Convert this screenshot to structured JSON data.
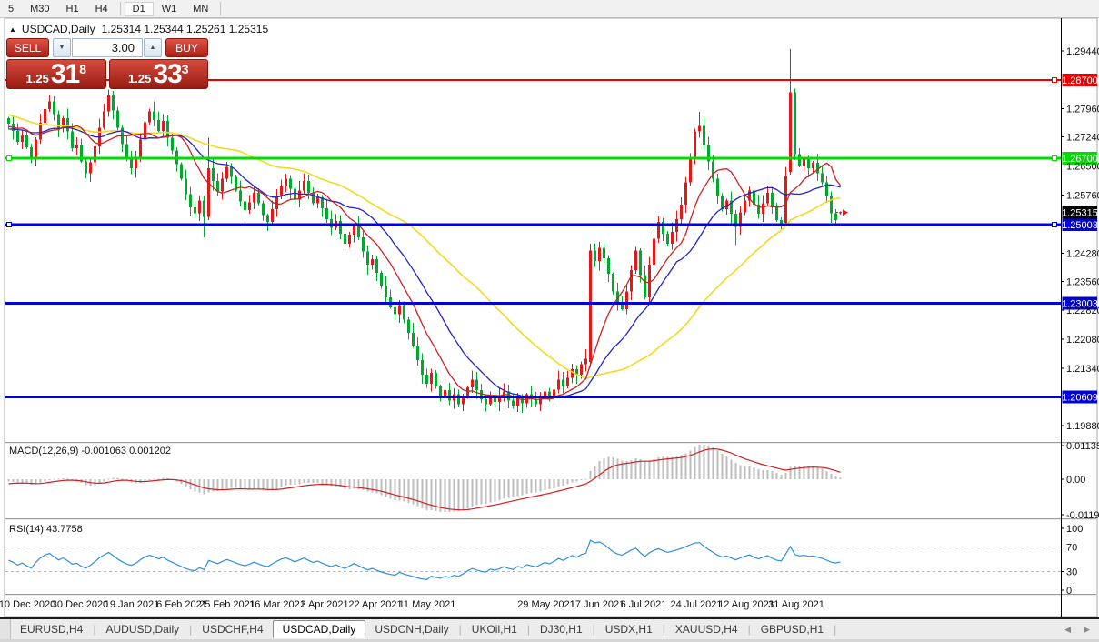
{
  "toolbar": {
    "timeframes": [
      "5",
      "M30",
      "H1",
      "H4",
      "D1",
      "W1",
      "MN"
    ],
    "active_timeframe": "D1"
  },
  "chart_header": {
    "symbol": "USDCAD,Daily",
    "ohlc": "1.25314 1.25344 1.25261 1.25315"
  },
  "trade_panel": {
    "sell_label": "SELL",
    "buy_label": "BUY",
    "volume": "3.00",
    "bid": {
      "prefix": "1.25",
      "big": "31",
      "pip": "8"
    },
    "ask": {
      "prefix": "1.25",
      "big": "33",
      "pip": "3"
    }
  },
  "tabs": {
    "items": [
      "EURUSD,H4",
      "AUDUSD,Daily",
      "USDCHF,H4",
      "USDCAD,Daily",
      "USDCNH,Daily",
      "UKOil,H1",
      "DJ30,H1",
      "USDX,H1",
      "XAUUSD,H4",
      "GBPUSD,H1"
    ],
    "active_index": 3
  },
  "chart_data": {
    "type": "candlestick",
    "title": "USDCAD,Daily",
    "colors": {
      "up": "#e81717",
      "down": "#00a82d",
      "ma_fast": "#cc2222",
      "ma_mid": "#2323cc",
      "ma_slow": "#f2da1f",
      "macd_hist": "#bdbdbd",
      "macd_signal": "#cc2222",
      "rsi": "#2f8fdd",
      "line_red": "#ee0000",
      "line_green": "#00dd00",
      "line_blue": "#0000dd",
      "current_label_bg": "#000000"
    },
    "price_axis_ticks": [
      "1.29440",
      "1.27960",
      "1.27240",
      "1.26500",
      "1.25760",
      "1.24280",
      "1.23560",
      "1.22820",
      "1.22080",
      "1.21340",
      "1.19880"
    ],
    "price_lines": [
      {
        "label": "1.28700",
        "price": 1.287,
        "color": "#ee0000",
        "width": 2,
        "handles": true
      },
      {
        "label": "1.26700",
        "price": 1.267,
        "color": "#00dd00",
        "width": 3,
        "handles": true
      },
      {
        "label": "1.25003",
        "price": 1.25003,
        "color": "#0000dd",
        "width": 3,
        "handles": true
      },
      {
        "label": "1.23003",
        "price": 1.23003,
        "color": "#0000dd",
        "width": 3,
        "handles": false
      },
      {
        "label": "1.20609",
        "price": 1.20609,
        "color": "#0000dd",
        "width": 3,
        "handles": false
      }
    ],
    "current_price_label": "1.25315",
    "current_price": 1.25315,
    "x_axis": {
      "labels": [
        "10 Dec 2020",
        "30 Dec 2020",
        "19 Jan 2021",
        "6 Feb 2021",
        "25 Feb 2021",
        "16 Mar 2021",
        "3 Apr 2021",
        "22 Apr 2021",
        "11 May 2021",
        "29 May 2021",
        "17 Jun 2021",
        "6 Jul 2021",
        "24 Jul 2021",
        "12 Aug 2021",
        "31 Aug 2021"
      ]
    },
    "macd": {
      "label": "MACD(12,26,9)",
      "values_text": "-0.001063 0.001202",
      "scale": [
        "0.01135",
        "0.00",
        "-0.01190"
      ],
      "fast": 12,
      "slow": 26,
      "signal": 9
    },
    "rsi": {
      "label": "RSI(14)",
      "value_text": "43.7758",
      "scale": [
        "100",
        "70",
        "30",
        "0"
      ],
      "period": 14,
      "levels": [
        70,
        30
      ]
    },
    "ma_periods": {
      "fast": 10,
      "mid": 20,
      "slow": 45
    },
    "wick_pips": {
      "base": 0.0004,
      "range": 0.0022
    },
    "pre_closes": [
      1.292,
      1.2905,
      1.2888,
      1.2902,
      1.2878,
      1.286,
      1.2872,
      1.2845,
      1.2828,
      1.2842,
      1.2815,
      1.2798,
      1.2812,
      1.2788,
      1.2772,
      1.279,
      1.2805,
      1.2782,
      1.2765,
      1.2778,
      1.2752,
      1.2768,
      1.2742,
      1.2758,
      1.2775,
      1.2748,
      1.2732,
      1.2755,
      1.2738,
      1.276,
      1.2742,
      1.2725,
      1.2748,
      1.273,
      1.2712,
      1.2735,
      1.2758,
      1.274,
      1.2722,
      1.2745,
      1.2768,
      1.2752,
      1.2735,
      1.2758,
      1.2772
    ],
    "closes": [
      1.2758,
      1.274,
      1.2712,
      1.2728,
      1.2698,
      1.2672,
      1.2718,
      1.276,
      1.2795,
      1.2815,
      1.2782,
      1.2748,
      1.2772,
      1.2738,
      1.2695,
      1.2705,
      1.2662,
      1.2632,
      1.266,
      1.27,
      1.2748,
      1.279,
      1.283,
      1.2792,
      1.2748,
      1.2706,
      1.2668,
      1.2645,
      1.2672,
      1.2718,
      1.2762,
      1.279,
      1.2768,
      1.274,
      1.2765,
      1.2722,
      1.269,
      1.2655,
      1.2618,
      1.2578,
      1.2545,
      1.253,
      1.2562,
      1.252,
      1.2645,
      1.2612,
      1.2585,
      1.2618,
      1.2648,
      1.2622,
      1.2588,
      1.256,
      1.2538,
      1.2558,
      1.2582,
      1.2555,
      1.2525,
      1.2508,
      1.254,
      1.2572,
      1.26,
      1.2618,
      1.2592,
      1.2565,
      1.2588,
      1.2612,
      1.2582,
      1.2555,
      1.257,
      1.2542,
      1.2515,
      1.2492,
      1.251,
      1.2478,
      1.2452,
      1.2475,
      1.25,
      1.2468,
      1.2432,
      1.2398,
      1.2412,
      1.2378,
      1.2345,
      1.2315,
      1.229,
      1.2272,
      1.2295,
      1.2258,
      1.2225,
      1.2192,
      1.2155,
      1.2118,
      1.2095,
      1.2122,
      1.2088,
      1.2065,
      1.2078,
      1.2052,
      1.2068,
      1.2042,
      1.206,
      1.2085,
      1.2105,
      1.2078,
      1.2055,
      1.2042,
      1.2065,
      1.2048,
      1.206,
      1.2075,
      1.2052,
      1.2038,
      1.206,
      1.2045,
      1.2068,
      1.2055,
      1.2042,
      1.2058,
      1.2075,
      1.2062,
      1.208,
      1.2105,
      1.2088,
      1.211,
      1.2132,
      1.2118,
      1.2145,
      1.2158,
      1.2435,
      1.2408,
      1.2442,
      1.2415,
      1.2375,
      1.233,
      1.2298,
      1.2285,
      1.233,
      1.2385,
      1.2435,
      1.2372,
      1.2315,
      1.2398,
      1.2465,
      1.2508,
      1.2478,
      1.2452,
      1.2482,
      1.2515,
      1.2552,
      1.2608,
      1.2672,
      1.2738,
      1.2752,
      1.2705,
      1.2662,
      1.2618,
      1.2572,
      1.254,
      1.2562,
      1.2528,
      1.2495,
      1.2532,
      1.2562,
      1.2588,
      1.2552,
      1.2528,
      1.2555,
      1.2582,
      1.2545,
      1.2512,
      1.2502,
      1.2625,
      1.2838,
      1.268,
      1.2652,
      1.2668,
      1.2645,
      1.2658,
      1.2632,
      1.2608,
      1.2572,
      1.253,
      1.2512,
      1.25315
    ],
    "special_bars": {
      "43": [
        1.2562,
        1.2575,
        1.2468,
        1.252
      ],
      "44": [
        1.252,
        1.2722,
        1.2512,
        1.2645
      ],
      "128": [
        1.215,
        1.2452,
        1.2138,
        1.2435
      ],
      "152": [
        1.2738,
        1.2788,
        1.2722,
        1.2752
      ],
      "160": [
        1.2528,
        1.2538,
        1.2448,
        1.2495
      ],
      "171": [
        1.2505,
        1.2648,
        1.2496,
        1.2625
      ],
      "172": [
        1.2635,
        1.2948,
        1.2628,
        1.2838
      ],
      "173": [
        1.2838,
        1.2848,
        1.2665,
        1.268
      ],
      "183": [
        1.25314,
        1.25344,
        1.25261,
        1.25315
      ]
    }
  }
}
